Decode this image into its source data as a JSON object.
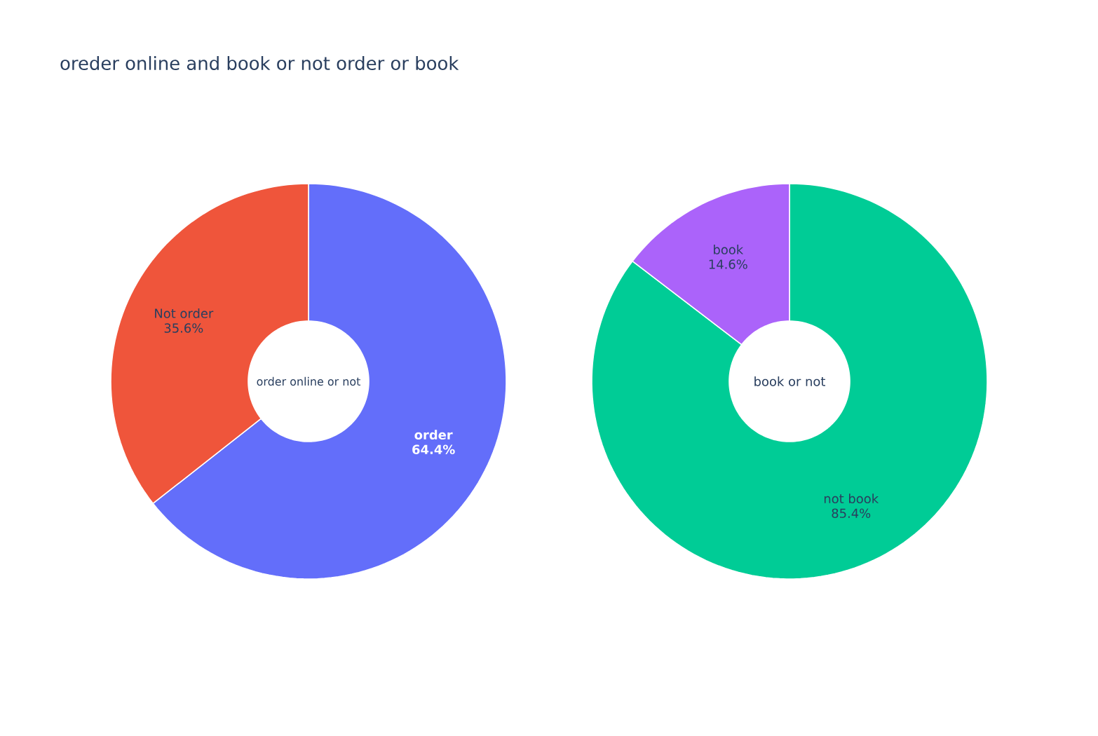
{
  "chart_data": [
    {
      "type": "donut",
      "title": "oreder online  and book or not order or book",
      "categories": [
        "order",
        "Not order"
      ],
      "values": [
        64.4,
        35.6
      ],
      "colors": [
        "#636efa",
        "#ef553b"
      ],
      "value_labels": [
        "64.4%",
        "35.6%"
      ],
      "annotations": [
        "order online or not"
      ]
    },
    {
      "type": "donut",
      "categories": [
        "not book",
        "book"
      ],
      "values": [
        85.4,
        14.6
      ],
      "colors": [
        "#00cc96",
        "#ab63fa"
      ],
      "value_labels": [
        "85.4%",
        "14.6%"
      ],
      "annotations": [
        "book or not"
      ]
    }
  ]
}
